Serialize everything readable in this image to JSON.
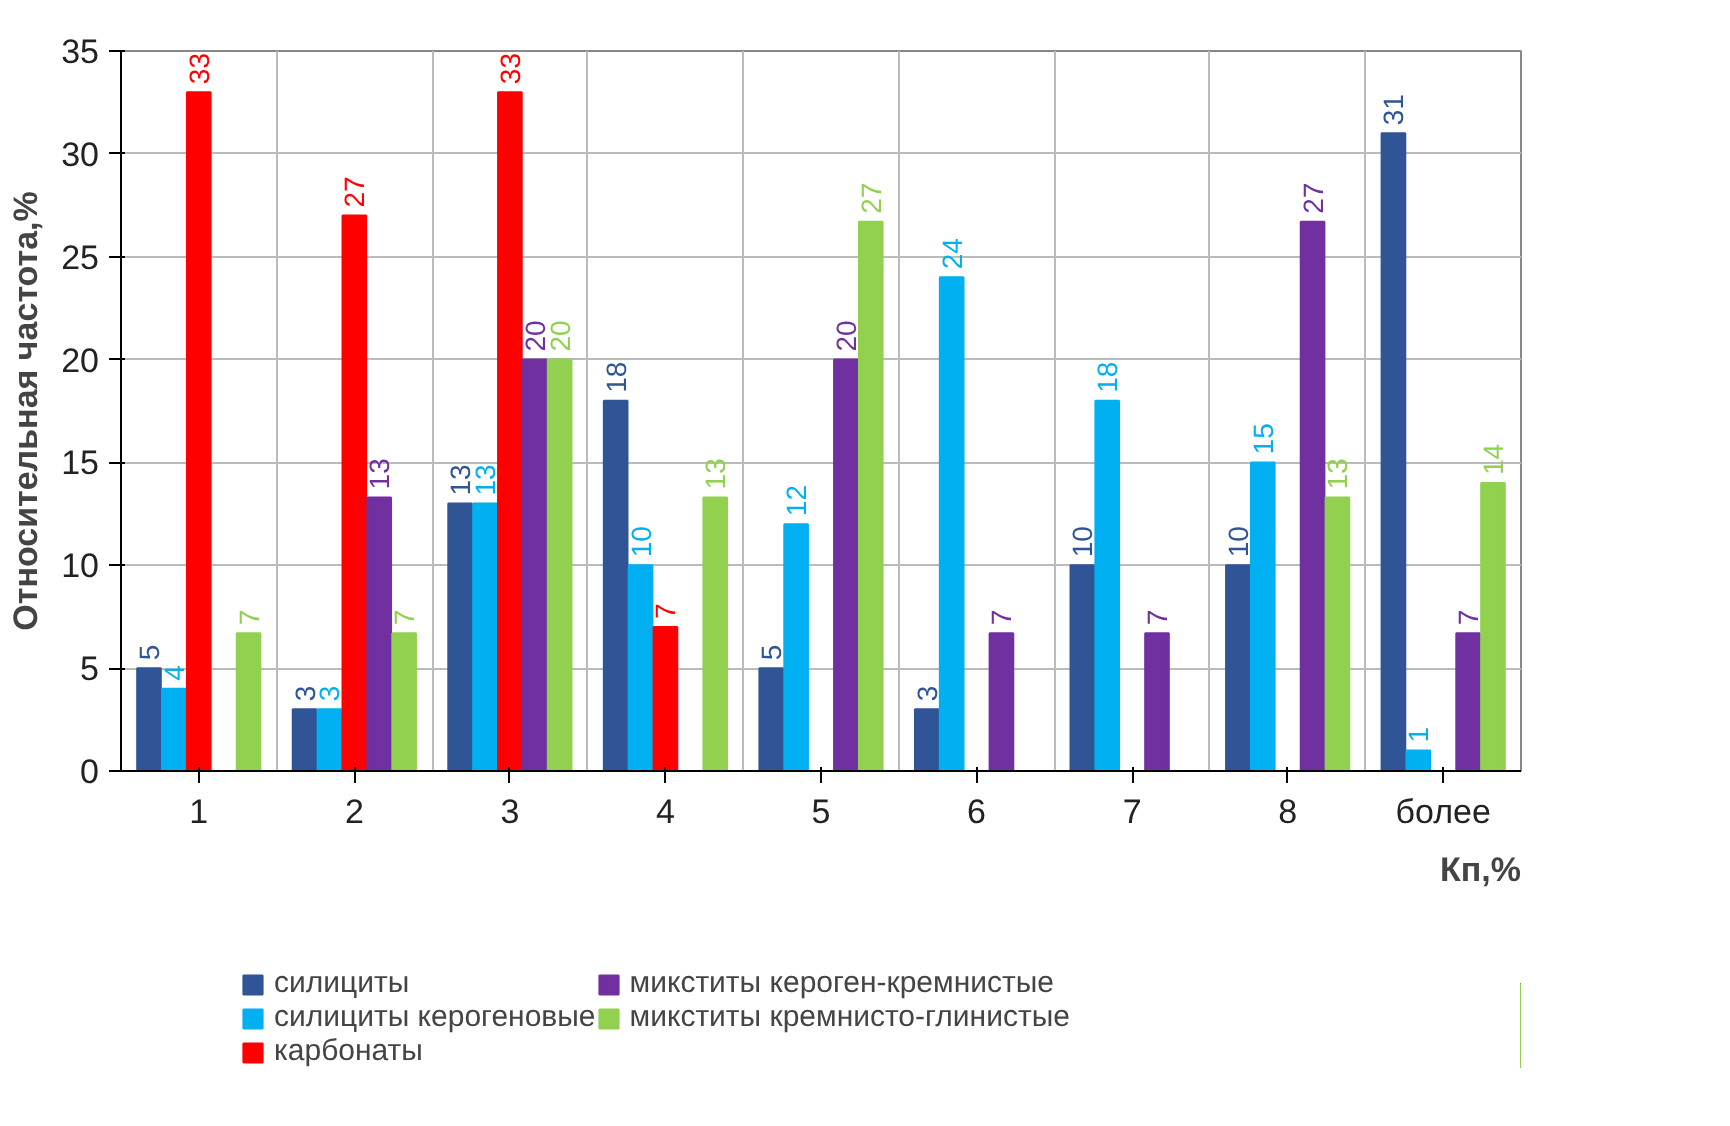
{
  "chart_data": {
    "type": "bar",
    "ylabel": "Относительная частота,%",
    "xlabel": "Кп,%",
    "categories": [
      "1",
      "2",
      "3",
      "4",
      "5",
      "6",
      "7",
      "8",
      "более"
    ],
    "ylim": [
      0,
      35
    ],
    "yticks": [
      0,
      5,
      10,
      15,
      20,
      25,
      30,
      35
    ],
    "grid": true,
    "legend": "bottom",
    "series": [
      {
        "name": "силициты",
        "color": "#2f5597",
        "values": [
          5,
          3,
          13,
          18,
          5,
          3,
          10,
          10,
          31
        ],
        "value_labels": [
          "5",
          "3",
          "13",
          "18",
          "5",
          "3",
          "10",
          "10",
          "31"
        ]
      },
      {
        "name": "силициты керогеновые",
        "color": "#00b0f0",
        "values": [
          4,
          3,
          13,
          10,
          12,
          24,
          18,
          15,
          1
        ],
        "value_labels": [
          "4",
          "3",
          "13",
          "10",
          "12",
          "24",
          "18",
          "15",
          "1"
        ]
      },
      {
        "name": "карбонаты",
        "color": "#ff0000",
        "values": [
          33,
          27,
          33,
          7,
          null,
          null,
          null,
          null,
          null
        ],
        "value_labels": [
          "33",
          "27",
          "33",
          "7",
          null,
          null,
          null,
          null,
          null
        ]
      },
      {
        "name": "микститы кероген-кремнистые",
        "color": "#7030a0",
        "values": [
          null,
          13.3,
          20,
          null,
          20,
          6.7,
          6.7,
          26.7,
          6.7
        ],
        "value_labels": [
          null,
          "13",
          "20",
          null,
          "20",
          "7",
          "7",
          "27",
          "7"
        ]
      },
      {
        "name": "микститы кремнисто-глинистые",
        "color": "#92d050",
        "values": [
          6.7,
          6.7,
          20,
          13.3,
          26.7,
          null,
          null,
          13.3,
          14
        ],
        "value_labels": [
          "7",
          "7",
          "20",
          "13",
          "27",
          null,
          null,
          "13",
          "14"
        ]
      }
    ]
  }
}
